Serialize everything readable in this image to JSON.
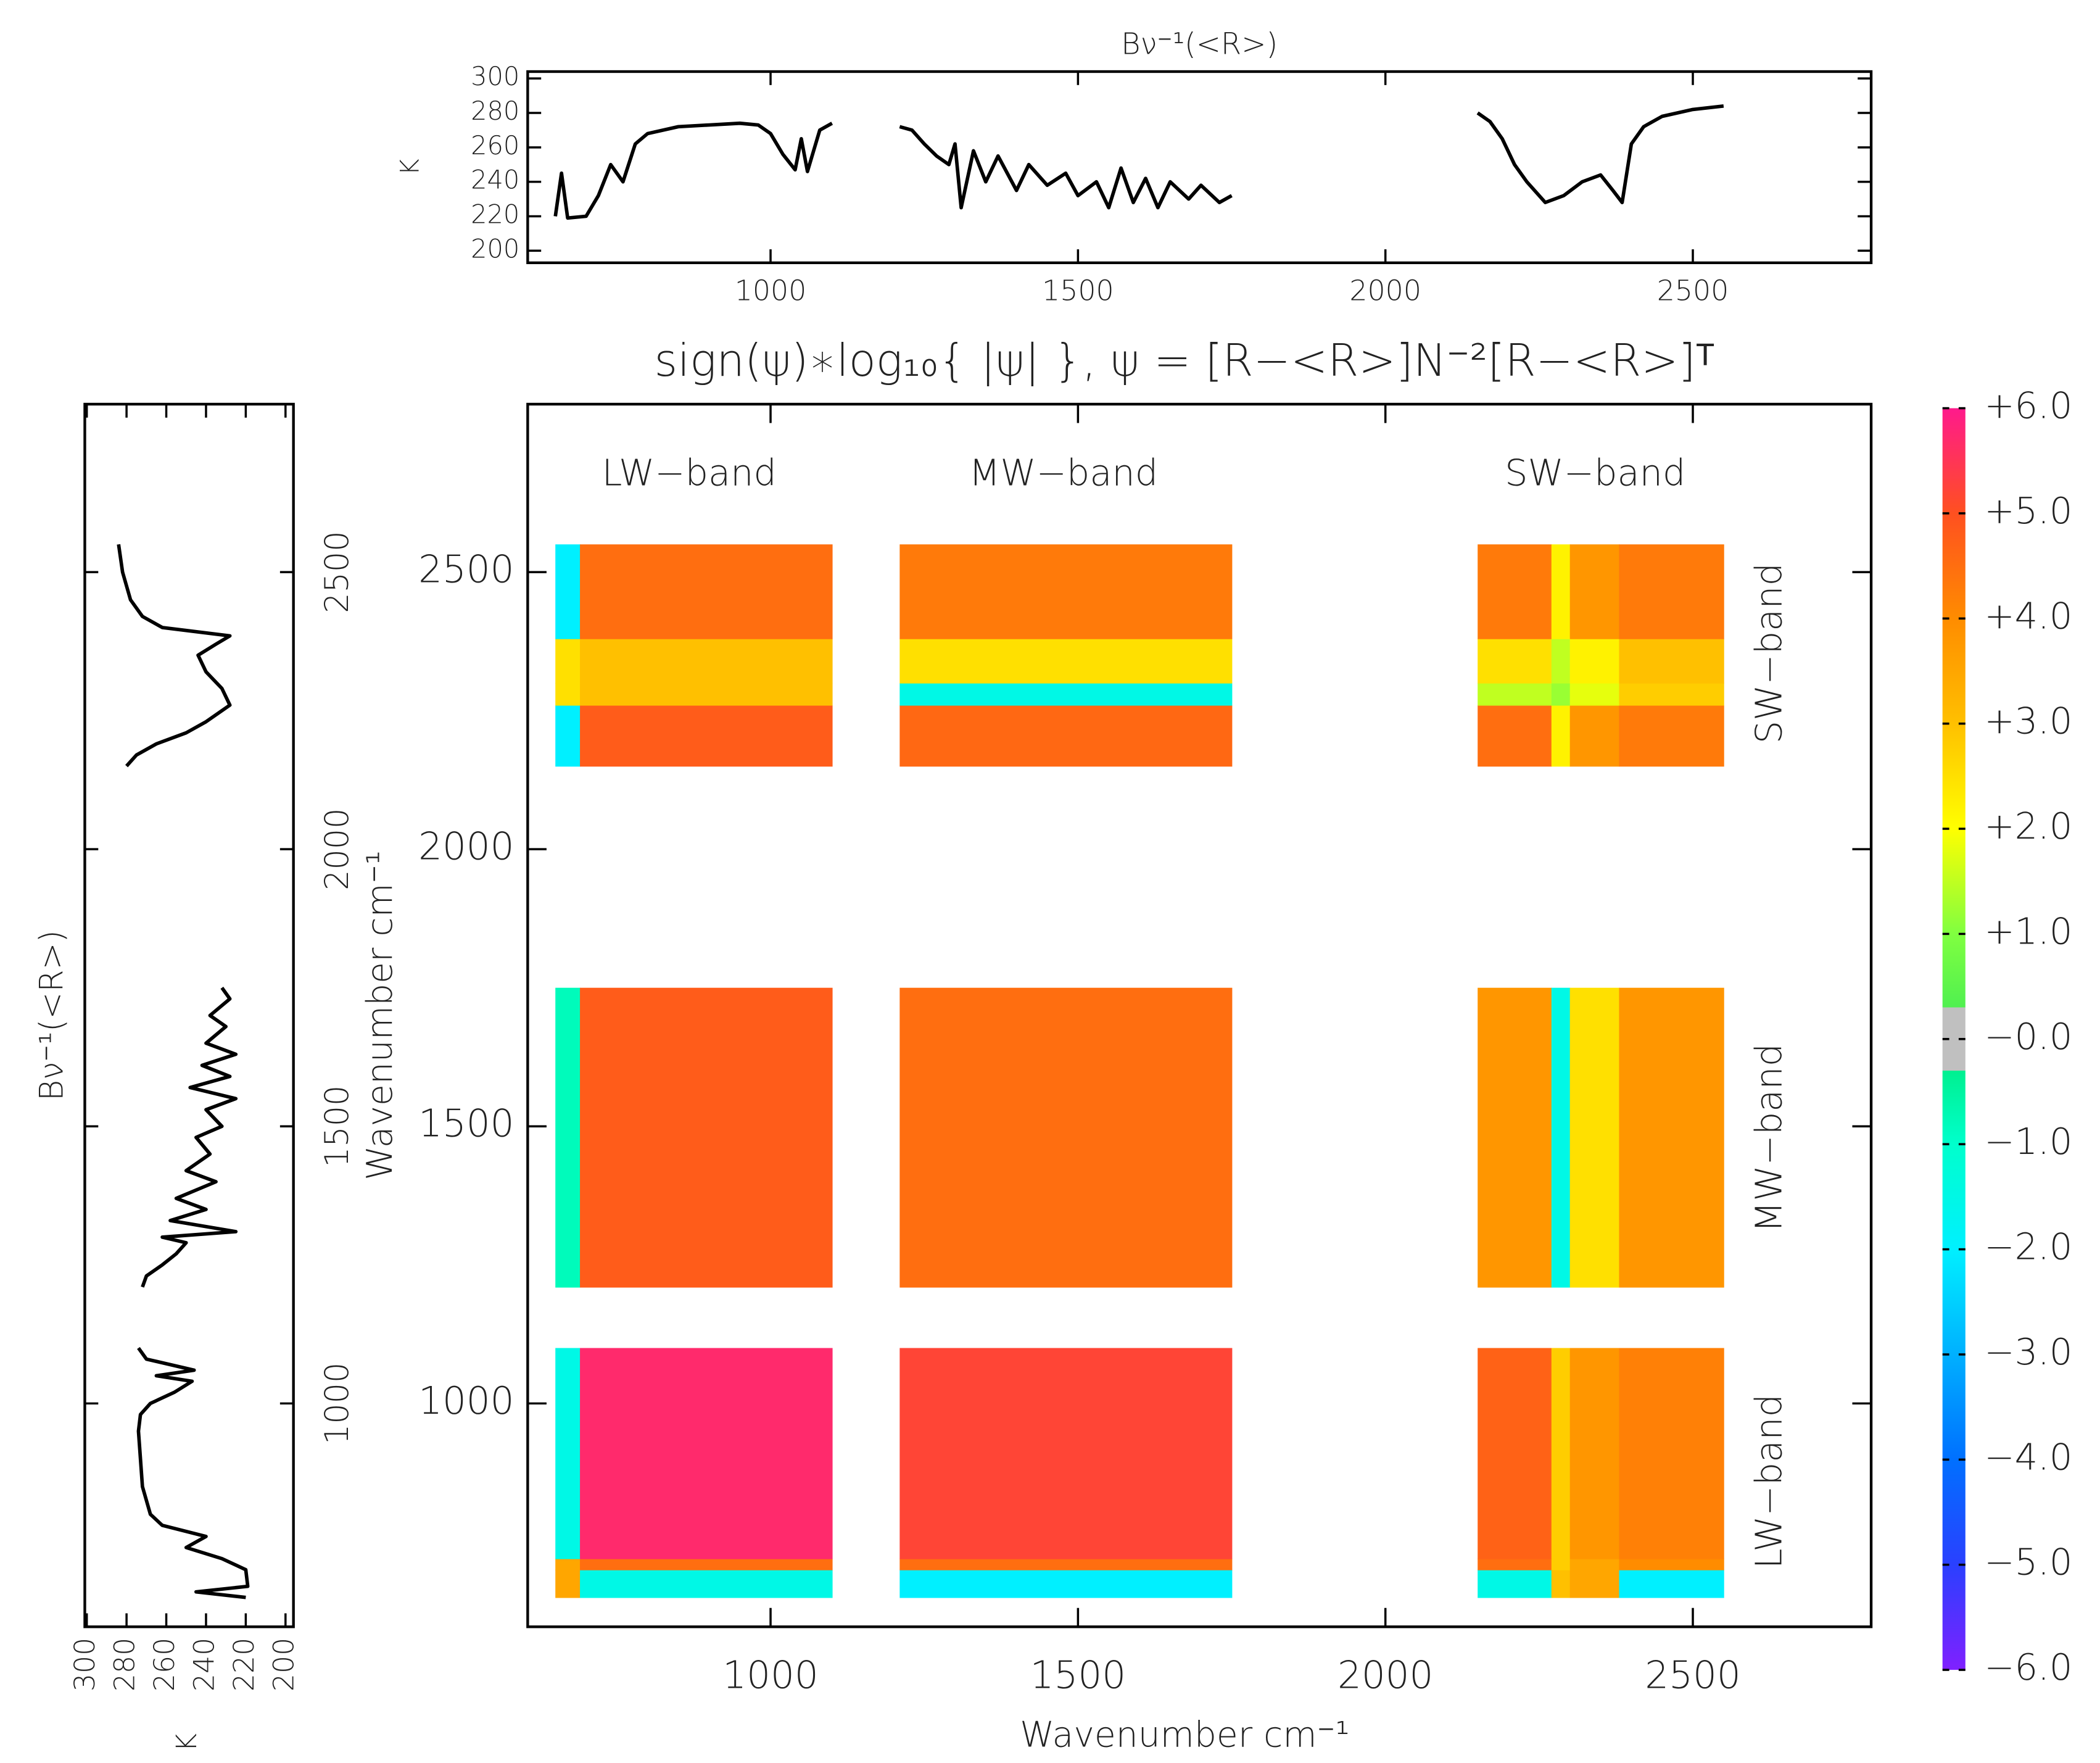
{
  "chart_data": [
    {
      "type": "line",
      "title": "Bν⁻¹(<R>)",
      "ylabel": "K",
      "x": [
        650,
        660,
        670,
        700,
        720,
        740,
        760,
        780,
        800,
        850,
        900,
        950,
        980,
        1000,
        1020,
        1040,
        1050,
        1060,
        1080,
        1100,
        1150,
        1210,
        1230,
        1250,
        1270,
        1290,
        1300,
        1310,
        1330,
        1350,
        1370,
        1400,
        1420,
        1450,
        1480,
        1500,
        1530,
        1550,
        1570,
        1590,
        1610,
        1630,
        1650,
        1680,
        1700,
        1730,
        1750,
        1950,
        2150,
        2170,
        2190,
        2210,
        2230,
        2260,
        2290,
        2320,
        2350,
        2370,
        2385,
        2400,
        2420,
        2450,
        2500,
        2550
      ],
      "values": [
        220,
        245,
        219,
        220,
        232,
        250,
        240,
        262,
        268,
        272,
        273,
        274,
        273,
        268,
        256,
        247,
        265,
        246,
        270,
        274,
        null,
        272,
        270,
        262,
        255,
        250,
        262,
        225,
        258,
        240,
        255,
        235,
        250,
        238,
        245,
        232,
        240,
        225,
        248,
        228,
        242,
        225,
        240,
        230,
        238,
        228,
        232,
        null,
        280,
        275,
        265,
        250,
        240,
        228,
        232,
        240,
        244,
        235,
        228,
        262,
        272,
        278,
        282,
        284
      ],
      "color": "#000000",
      "xlim": [
        605,
        2790
      ],
      "ylim": [
        193,
        304
      ],
      "xticks": [
        1000,
        1500,
        2000,
        2500
      ],
      "yticks": [
        200,
        220,
        240,
        260,
        280,
        300
      ]
    },
    {
      "type": "line",
      "orientation": "vertical",
      "title": "Bν⁻¹(<R>)",
      "xlabel": "K",
      "ylabel": "Wavenumber cm⁻¹",
      "x": [
        650,
        660,
        670,
        700,
        720,
        740,
        760,
        780,
        800,
        850,
        900,
        950,
        980,
        1000,
        1020,
        1040,
        1050,
        1060,
        1080,
        1100,
        1150,
        1210,
        1230,
        1250,
        1270,
        1290,
        1300,
        1310,
        1330,
        1350,
        1370,
        1400,
        1420,
        1450,
        1480,
        1500,
        1530,
        1550,
        1570,
        1590,
        1610,
        1630,
        1650,
        1680,
        1700,
        1730,
        1750,
        1950,
        2150,
        2170,
        2190,
        2210,
        2230,
        2260,
        2290,
        2320,
        2350,
        2370,
        2385,
        2400,
        2420,
        2450,
        2500,
        2550
      ],
      "values": [
        220,
        245,
        219,
        220,
        232,
        250,
        240,
        262,
        268,
        272,
        273,
        274,
        273,
        268,
        256,
        247,
        265,
        246,
        270,
        274,
        null,
        272,
        270,
        262,
        255,
        250,
        262,
        225,
        258,
        240,
        255,
        235,
        250,
        238,
        245,
        232,
        240,
        225,
        248,
        228,
        242,
        225,
        240,
        230,
        238,
        228,
        232,
        null,
        280,
        275,
        265,
        250,
        240,
        228,
        232,
        240,
        244,
        235,
        228,
        262,
        272,
        278,
        282,
        284
      ],
      "color": "#000000",
      "vlim": [
        301,
        196
      ],
      "ylim": [
        597,
        2803
      ],
      "vticks": [
        300,
        280,
        260,
        240,
        220,
        200
      ],
      "yticks": [
        1000,
        1500,
        2000,
        2500
      ]
    },
    {
      "type": "heatmap",
      "title": "sign(ψ)∗log₁₀{ |ψ| },    ψ = [R−<R>]N⁻²[R−<R>]ᵀ",
      "xlabel": "Wavenumber cm⁻¹",
      "x_edges": [
        650,
        690,
        1100,
        1210,
        1750,
        2150,
        2270,
        2300,
        2380,
        2550
      ],
      "y_edges": [
        650,
        700,
        720,
        1100,
        1210,
        1750,
        2150,
        2260,
        2300,
        2380,
        2550
      ],
      "z": [
        [
          3.5,
          -1.5,
          null,
          -2,
          null,
          -1.5,
          3,
          3.5,
          -2
        ],
        [
          3.5,
          4.5,
          null,
          4.5,
          null,
          4.5,
          2.8,
          3.5,
          4
        ],
        [
          -1.5,
          5.7,
          null,
          5.2,
          null,
          4.7,
          2.8,
          3.8,
          4.2
        ],
        [
          null,
          null,
          null,
          null,
          null,
          null,
          null,
          null,
          null
        ],
        [
          -0.8,
          4.8,
          null,
          4.5,
          null,
          3.8,
          -1.5,
          2.5,
          3.8
        ],
        [
          null,
          null,
          null,
          null,
          null,
          null,
          null,
          null,
          null
        ],
        [
          -2,
          4.8,
          null,
          4.6,
          null,
          4.5,
          2.2,
          3.8,
          4.3
        ],
        [
          2.5,
          3,
          null,
          -1.5,
          null,
          1.5,
          1.2,
          1.8,
          2.8
        ],
        [
          2.5,
          3,
          null,
          2.5,
          null,
          2.5,
          1.5,
          2.2,
          3
        ],
        [
          -2,
          4.5,
          null,
          4.3,
          null,
          4.3,
          2.2,
          3.8,
          4.3
        ]
      ],
      "xlim": [
        605,
        2790
      ],
      "ylim": [
        597,
        2803
      ],
      "xticks": [
        1000,
        1500,
        2000,
        2500
      ],
      "yticks": [
        1000,
        1500,
        2000,
        2500
      ],
      "column_labels": [
        "LW−band",
        "MW−band",
        "SW−band"
      ],
      "row_labels": [
        "SW−band",
        "MW−band",
        "LW−band"
      ]
    },
    {
      "type": "colorbar",
      "zlim": [
        -6,
        6
      ],
      "ticks": [
        {
          "value": 6,
          "label": "+6.0"
        },
        {
          "value": 5,
          "label": "+5.0"
        },
        {
          "value": 4,
          "label": "+4.0"
        },
        {
          "value": 3,
          "label": "+3.0"
        },
        {
          "value": 2,
          "label": "+2.0"
        },
        {
          "value": 1,
          "label": "+1.0"
        },
        {
          "value": 0,
          "label": "−0.0"
        },
        {
          "value": -1,
          "label": "−1.0"
        },
        {
          "value": -2,
          "label": "−2.0"
        },
        {
          "value": -3,
          "label": "−3.0"
        },
        {
          "value": -4,
          "label": "−4.0"
        },
        {
          "value": -5,
          "label": "−5.0"
        },
        {
          "value": -6,
          "label": "−6.0"
        }
      ],
      "colorscale": [
        [
          -6,
          "#8020ff"
        ],
        [
          -5,
          "#2a40ff"
        ],
        [
          -4,
          "#0070ff"
        ],
        [
          -3,
          "#00b0ff"
        ],
        [
          -2,
          "#00f0ff"
        ],
        [
          -1,
          "#00ffcc"
        ],
        [
          -0.3,
          "#00f090"
        ],
        [
          0.3,
          "#50f050"
        ],
        [
          1,
          "#80ff40"
        ],
        [
          2,
          "#ffff00"
        ],
        [
          3,
          "#ffc000"
        ],
        [
          4,
          "#ff8c00"
        ],
        [
          5,
          "#ff5020"
        ],
        [
          6,
          "#ff1a8c"
        ]
      ],
      "neutral": {
        "range": [
          -0.3,
          0.3
        ],
        "color": "#c0c0c0"
      }
    }
  ]
}
